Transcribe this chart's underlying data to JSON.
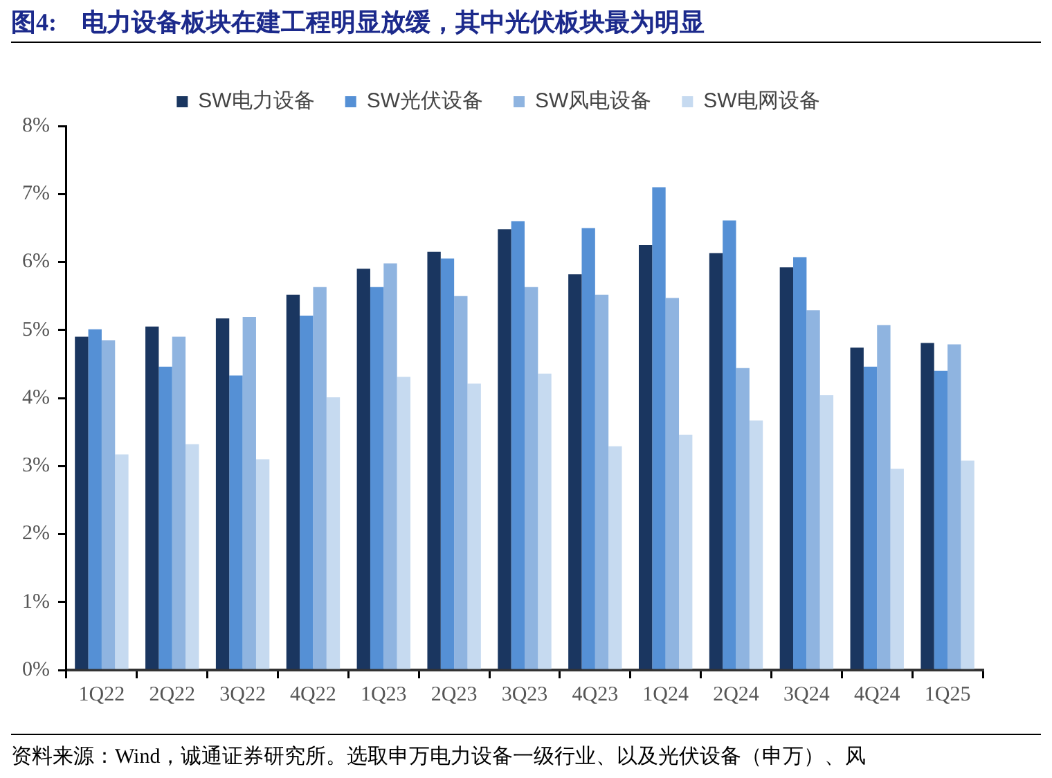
{
  "chart_data": {
    "type": "bar",
    "title": "图4:　电力设备板块在建工程明显放缓，其中光伏板块最为明显",
    "categories": [
      "1Q22",
      "2Q22",
      "3Q22",
      "4Q22",
      "1Q23",
      "2Q23",
      "3Q23",
      "4Q23",
      "1Q24",
      "2Q24",
      "3Q24",
      "4Q24",
      "1Q25"
    ],
    "series": [
      {
        "name": "SW电力设备",
        "color": "#1a3660",
        "values": [
          4.9,
          5.05,
          5.17,
          5.52,
          5.9,
          6.15,
          6.48,
          5.82,
          6.25,
          6.13,
          5.92,
          4.74,
          4.81
        ]
      },
      {
        "name": "SW光伏设备",
        "color": "#5590d5",
        "values": [
          5.01,
          4.46,
          4.33,
          5.21,
          5.63,
          6.05,
          6.6,
          6.5,
          7.1,
          6.61,
          6.07,
          4.46,
          4.4
        ]
      },
      {
        "name": "SW风电设备",
        "color": "#8fb4e0",
        "values": [
          4.85,
          4.9,
          5.19,
          5.63,
          5.98,
          5.5,
          5.63,
          5.52,
          5.47,
          4.44,
          5.29,
          5.07,
          4.79
        ]
      },
      {
        "name": "SW电网设备",
        "color": "#c6daf0",
        "values": [
          3.17,
          3.32,
          3.1,
          4.01,
          4.31,
          4.21,
          4.36,
          3.29,
          3.46,
          3.67,
          4.04,
          2.96,
          3.08
        ]
      }
    ],
    "ylim": [
      0,
      8
    ],
    "yticks": [
      {
        "value": 0,
        "label": "0%"
      },
      {
        "value": 1,
        "label": "1%"
      },
      {
        "value": 2,
        "label": "2%"
      },
      {
        "value": 3,
        "label": "3%"
      },
      {
        "value": 4,
        "label": "4%"
      },
      {
        "value": 5,
        "label": "5%"
      },
      {
        "value": 6,
        "label": "6%"
      },
      {
        "value": 7,
        "label": "7%"
      },
      {
        "value": 8,
        "label": "8%"
      }
    ],
    "legend": "top",
    "grid": false,
    "annotations": [
      "资料来源：Wind，诚通证券研究所。选取申万电力设备一级行业、以及光伏设备（申万）、风"
    ]
  }
}
